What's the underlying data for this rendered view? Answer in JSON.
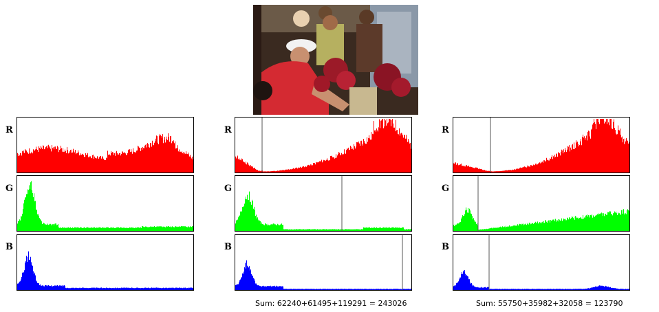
{
  "channel_labels": {
    "r": "R",
    "g": "G",
    "b": "B"
  },
  "colors": {
    "r": "#ff0000",
    "g": "#00ff00",
    "b": "#0000ff",
    "threshold": "#555555"
  },
  "photo": {
    "icon": "flower-market-photo"
  },
  "panels": [
    {
      "thresholds": {
        "r": null,
        "g": null,
        "b": null
      },
      "sum": ""
    },
    {
      "thresholds": {
        "r": 39,
        "g": 155,
        "b": 243
      },
      "sum": "Sum: 62240+61495+119291 = 243026"
    },
    {
      "thresholds": {
        "r": 54,
        "g": 36,
        "b": 52
      },
      "sum": "Sum: 55750+35982+32058 = 123790"
    }
  ]
}
